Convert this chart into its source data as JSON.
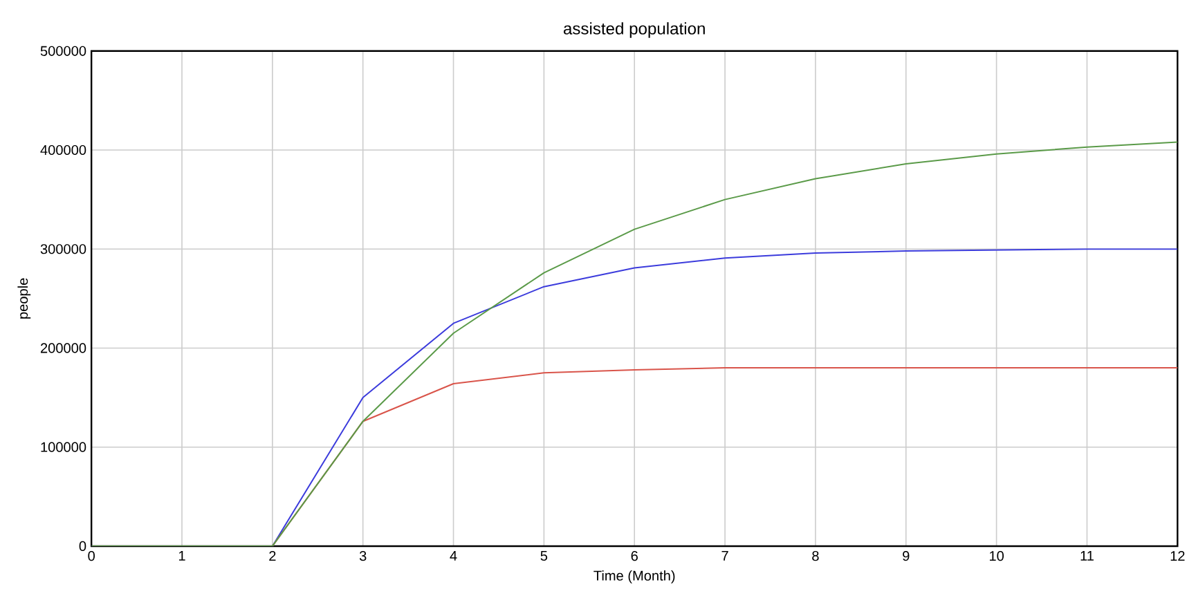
{
  "chart_data": {
    "type": "line",
    "title": "assisted population",
    "xlabel": "Time (Month)",
    "ylabel": "people",
    "x": [
      0,
      1,
      2,
      3,
      4,
      5,
      6,
      7,
      8,
      9,
      10,
      11,
      12
    ],
    "series": [
      {
        "color": "#3b3bdc",
        "values": [
          0,
          0,
          0,
          150000,
          225000,
          262000,
          281000,
          291000,
          296000,
          298000,
          299000,
          300000,
          300000
        ]
      },
      {
        "color": "#d9544a",
        "values": [
          null,
          null,
          0,
          126000,
          164000,
          175000,
          178000,
          180000,
          180000,
          180000,
          180000,
          180000,
          180000
        ]
      },
      {
        "color": "#5a9a48",
        "values": [
          0,
          0,
          0,
          126000,
          215000,
          276000,
          320000,
          350000,
          371000,
          386000,
          396000,
          403000,
          408000
        ]
      }
    ],
    "xlim": [
      0,
      12
    ],
    "xticks": [
      0,
      1,
      2,
      3,
      4,
      5,
      6,
      7,
      8,
      9,
      10,
      11,
      12
    ],
    "ylim": [
      0,
      500000
    ],
    "yticks": [
      0,
      100000,
      200000,
      300000,
      400000,
      500000
    ],
    "grid": true,
    "marker": "none",
    "line_style": "solid"
  }
}
